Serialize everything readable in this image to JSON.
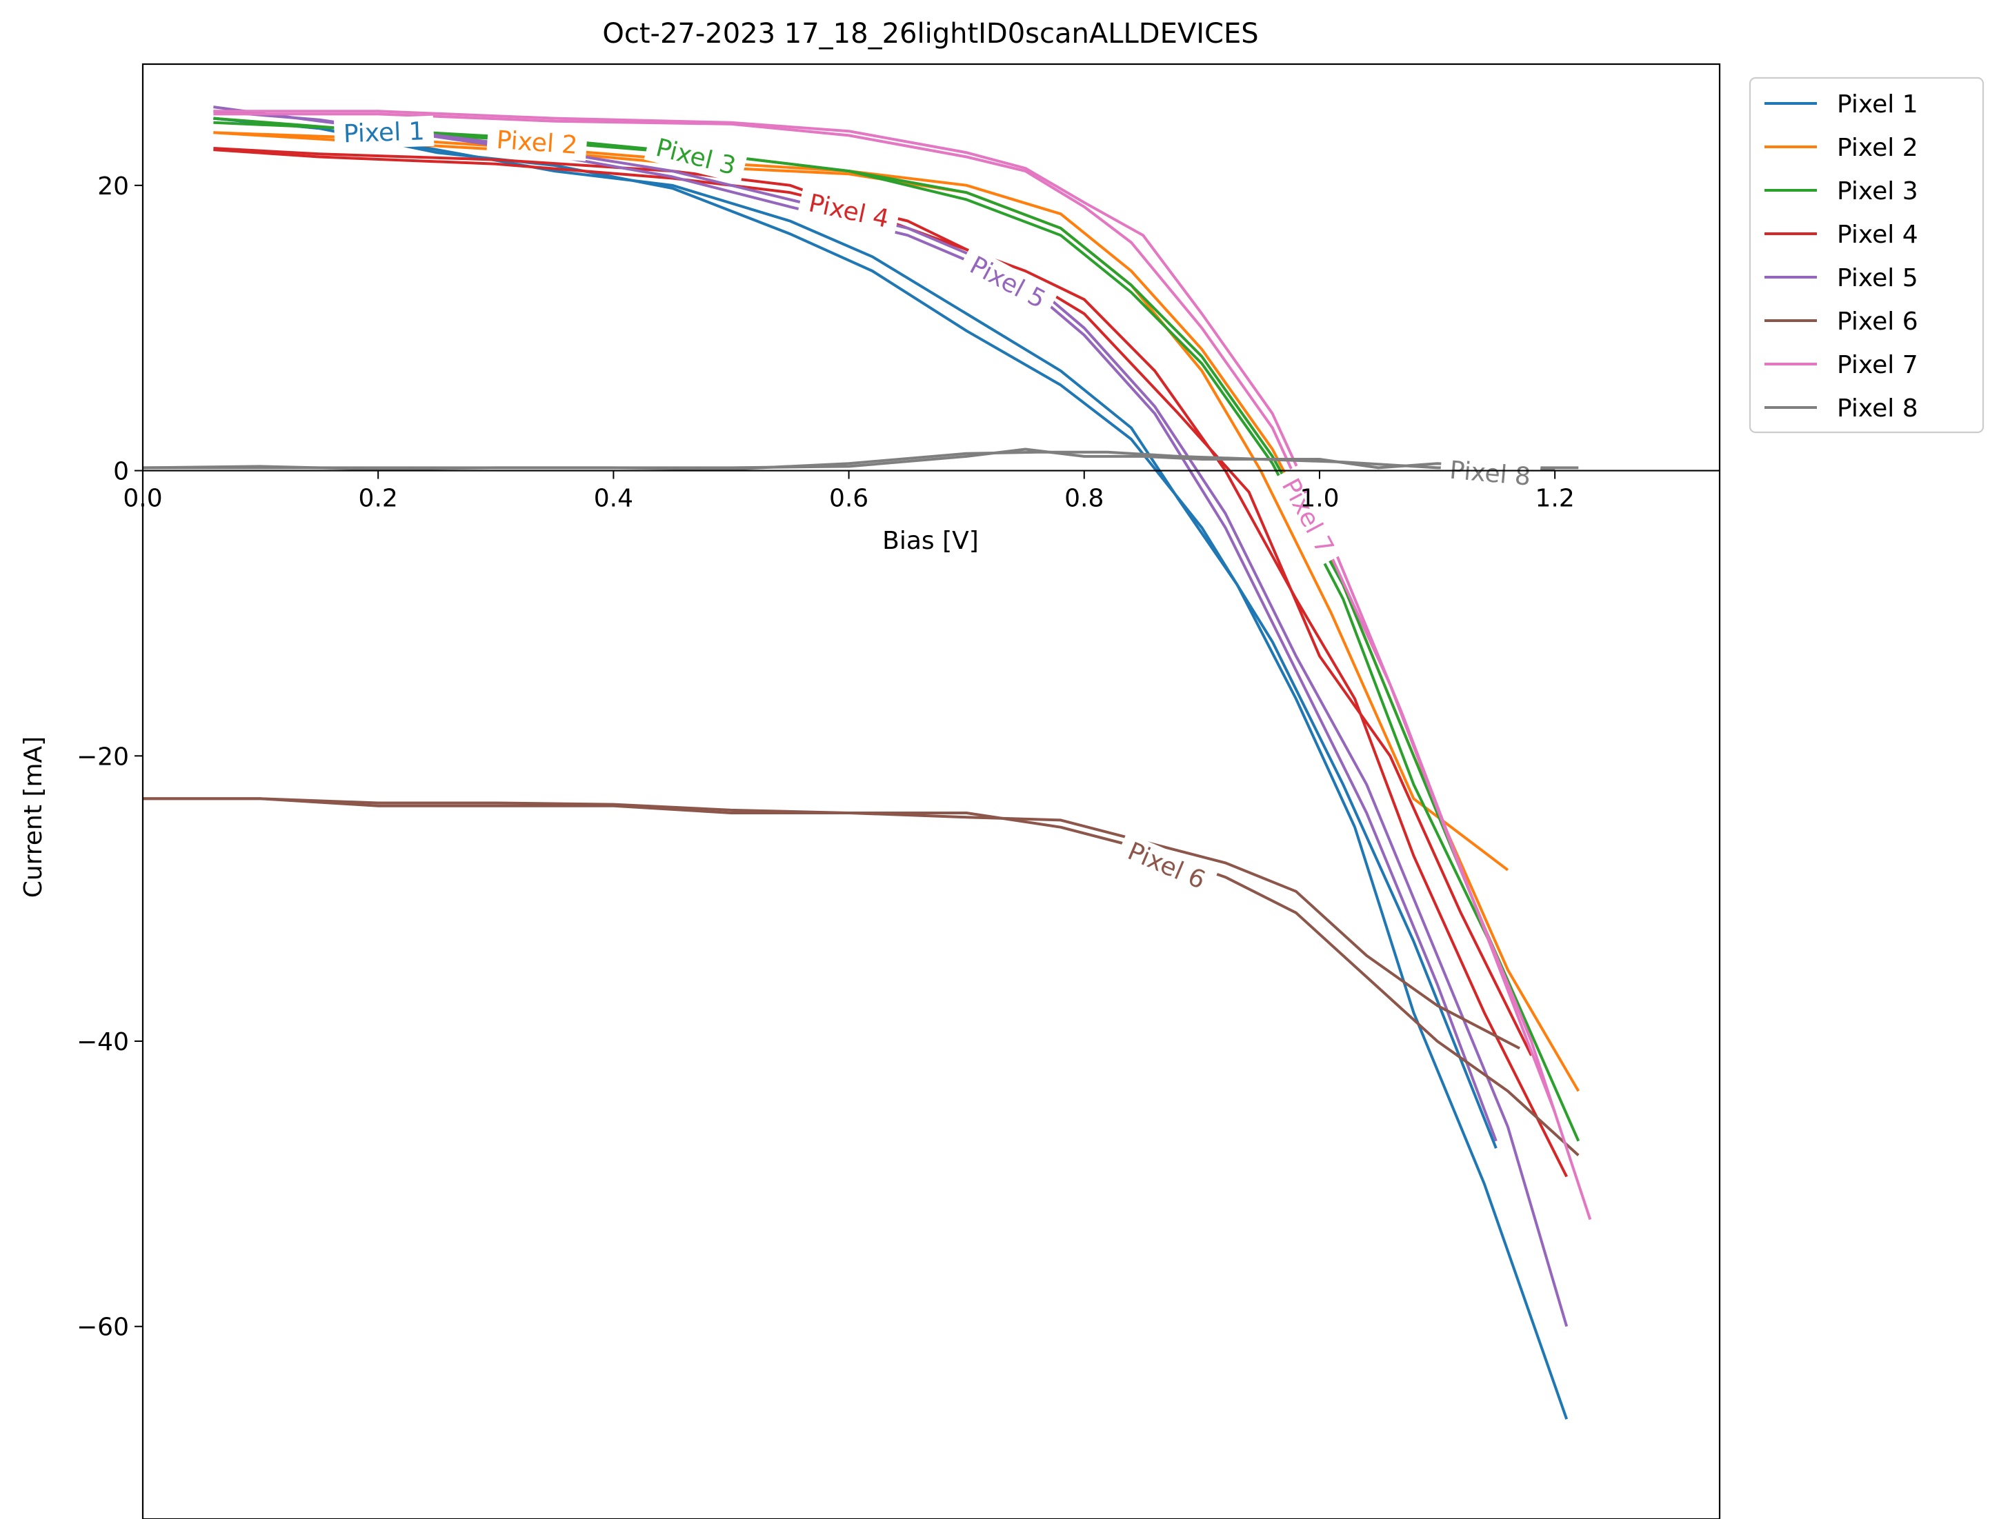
{
  "chart_data": {
    "type": "line",
    "title": "Oct-27-2023 17_18_26lightID0scanALLDEVICES",
    "xlabel": "Bias [V]",
    "ylabel": "Current [mA]",
    "xlim": [
      0.0,
      1.34
    ],
    "ylim": [
      -73.5,
      28.5
    ],
    "xticks": [
      0.0,
      0.2,
      0.4,
      0.6,
      0.8,
      1.0,
      1.2
    ],
    "xtick_labels": [
      "0.0",
      "0.2",
      "0.4",
      "0.6",
      "0.8",
      "1.0",
      "1.2"
    ],
    "yticks": [
      20,
      0,
      -20,
      -40,
      -60
    ],
    "ytick_labels": [
      "20",
      "0",
      "−20",
      "−40",
      "−60"
    ],
    "x_axis_at_y": 0,
    "grid": false,
    "legend_position": "outside-top-right",
    "series": [
      {
        "name": "Pixel 1",
        "color": "#1f77b4",
        "sweeps": [
          [
            [
              0.06,
              24.7
            ],
            [
              0.15,
              24.0
            ],
            [
              0.25,
              22.5
            ],
            [
              0.35,
              21.0
            ],
            [
              0.45,
              20.0
            ],
            [
              0.55,
              17.5
            ],
            [
              0.62,
              15.0
            ],
            [
              0.7,
              11.0
            ],
            [
              0.78,
              7.0
            ],
            [
              0.84,
              3.0
            ],
            [
              0.88,
              -2.0
            ],
            [
              0.93,
              -8.0
            ],
            [
              0.98,
              -16.0
            ],
            [
              1.03,
              -25.0
            ],
            [
              1.08,
              -38.0
            ],
            [
              1.14,
              -50.0
            ],
            [
              1.21,
              -66.5
            ]
          ],
          [
            [
              0.06,
              24.7
            ],
            [
              0.15,
              24.0
            ],
            [
              0.25,
              22.3
            ],
            [
              0.35,
              21.4
            ],
            [
              0.45,
              19.8
            ],
            [
              0.55,
              16.6
            ],
            [
              0.62,
              14.0
            ],
            [
              0.7,
              9.8
            ],
            [
              0.78,
              6.0
            ],
            [
              0.84,
              2.2
            ],
            [
              0.9,
              -4.0
            ],
            [
              0.96,
              -12.0
            ],
            [
              1.02,
              -22.0
            ],
            [
              1.08,
              -33.0
            ],
            [
              1.15,
              -47.5
            ]
          ]
        ]
      },
      {
        "name": "Pixel 2",
        "color": "#ff7f0e",
        "sweeps": [
          [
            [
              0.06,
              23.7
            ],
            [
              0.2,
              23.3
            ],
            [
              0.35,
              22.5
            ],
            [
              0.5,
              21.5
            ],
            [
              0.6,
              21.0
            ],
            [
              0.7,
              20.0
            ],
            [
              0.78,
              18.0
            ],
            [
              0.84,
              14.0
            ],
            [
              0.9,
              8.5
            ],
            [
              0.96,
              1.5
            ],
            [
              1.02,
              -8.0
            ],
            [
              1.08,
              -20.0
            ],
            [
              1.16,
              -35.0
            ],
            [
              1.22,
              -43.5
            ]
          ],
          [
            [
              0.06,
              23.7
            ],
            [
              0.2,
              23.0
            ],
            [
              0.35,
              22.3
            ],
            [
              0.5,
              21.2
            ],
            [
              0.6,
              20.8
            ],
            [
              0.7,
              19.5
            ],
            [
              0.78,
              17.0
            ],
            [
              0.84,
              13.0
            ],
            [
              0.9,
              7.0
            ],
            [
              0.95,
              0.0
            ],
            [
              1.01,
              -10.0
            ],
            [
              1.08,
              -23.0
            ],
            [
              1.16,
              -28.0
            ]
          ]
        ]
      },
      {
        "name": "Pixel 3",
        "color": "#2ca02c",
        "sweeps": [
          [
            [
              0.06,
              24.7
            ],
            [
              0.2,
              23.8
            ],
            [
              0.35,
              23.0
            ],
            [
              0.5,
              22.0
            ],
            [
              0.6,
              21.0
            ],
            [
              0.7,
              19.5
            ],
            [
              0.78,
              17.0
            ],
            [
              0.84,
              13.0
            ],
            [
              0.9,
              8.0
            ],
            [
              0.96,
              1.0
            ],
            [
              1.02,
              -8.0
            ],
            [
              1.08,
              -20.0
            ],
            [
              1.14,
              -32.0
            ],
            [
              1.22,
              -47.0
            ]
          ],
          [
            [
              0.06,
              24.4
            ],
            [
              0.2,
              23.9
            ],
            [
              0.35,
              23.2
            ],
            [
              0.5,
              22.0
            ],
            [
              0.6,
              21.0
            ],
            [
              0.7,
              19.0
            ],
            [
              0.78,
              16.5
            ],
            [
              0.84,
              12.5
            ],
            [
              0.9,
              7.5
            ],
            [
              0.96,
              0.5
            ],
            [
              1.02,
              -9.0
            ],
            [
              1.08,
              -22.0
            ],
            [
              1.15,
              -34.0
            ]
          ]
        ]
      },
      {
        "name": "Pixel 4",
        "color": "#d62728",
        "sweeps": [
          [
            [
              0.06,
              22.6
            ],
            [
              0.15,
              22.2
            ],
            [
              0.3,
              21.8
            ],
            [
              0.45,
              21.0
            ],
            [
              0.55,
              20.0
            ],
            [
              0.65,
              17.0
            ],
            [
              0.75,
              14.0
            ],
            [
              0.8,
              12.0
            ],
            [
              0.86,
              7.0
            ],
            [
              0.92,
              0.0
            ],
            [
              0.98,
              -9.0
            ],
            [
              1.03,
              -16.0
            ],
            [
              1.08,
              -27.0
            ],
            [
              1.14,
              -38.0
            ],
            [
              1.21,
              -49.5
            ]
          ],
          [
            [
              0.06,
              22.5
            ],
            [
              0.15,
              22.0
            ],
            [
              0.3,
              21.5
            ],
            [
              0.45,
              20.5
            ],
            [
              0.55,
              19.5
            ],
            [
              0.65,
              17.5
            ],
            [
              0.75,
              13.5
            ],
            [
              0.8,
              11.0
            ],
            [
              0.88,
              4.0
            ],
            [
              0.94,
              -1.5
            ],
            [
              1.0,
              -13.0
            ],
            [
              1.06,
              -20.0
            ],
            [
              1.12,
              -31.0
            ],
            [
              1.18,
              -41.0
            ]
          ]
        ]
      },
      {
        "name": "Pixel 5",
        "color": "#9467bd",
        "sweeps": [
          [
            [
              0.06,
              25.5
            ],
            [
              0.15,
              24.5
            ],
            [
              0.3,
              23.0
            ],
            [
              0.45,
              21.0
            ],
            [
              0.55,
              19.0
            ],
            [
              0.65,
              17.0
            ],
            [
              0.75,
              13.5
            ],
            [
              0.8,
              10.0
            ],
            [
              0.86,
              4.5
            ],
            [
              0.92,
              -3.0
            ],
            [
              0.98,
              -13.0
            ],
            [
              1.04,
              -22.0
            ],
            [
              1.1,
              -34.0
            ],
            [
              1.16,
              -46.0
            ],
            [
              1.21,
              -60.0
            ]
          ],
          [
            [
              0.06,
              25.2
            ],
            [
              0.15,
              24.6
            ],
            [
              0.3,
              22.8
            ],
            [
              0.45,
              20.6
            ],
            [
              0.55,
              18.5
            ],
            [
              0.65,
              16.5
            ],
            [
              0.75,
              13.0
            ],
            [
              0.8,
              9.5
            ],
            [
              0.86,
              4.0
            ],
            [
              0.92,
              -4.0
            ],
            [
              0.98,
              -14.0
            ],
            [
              1.04,
              -24.0
            ],
            [
              1.1,
              -36.0
            ],
            [
              1.15,
              -47.0
            ]
          ]
        ]
      },
      {
        "name": "Pixel 6",
        "color": "#8c564b",
        "sweeps": [
          [
            [
              0.0,
              -23.0
            ],
            [
              0.1,
              -23.0
            ],
            [
              0.2,
              -23.5
            ],
            [
              0.3,
              -23.5
            ],
            [
              0.4,
              -23.5
            ],
            [
              0.5,
              -24.0
            ],
            [
              0.6,
              -24.0
            ],
            [
              0.7,
              -24.0
            ],
            [
              0.78,
              -25.0
            ],
            [
              0.85,
              -26.5
            ],
            [
              0.92,
              -28.5
            ],
            [
              0.98,
              -31.0
            ],
            [
              1.04,
              -35.5
            ],
            [
              1.1,
              -40.0
            ],
            [
              1.16,
              -43.5
            ],
            [
              1.22,
              -48.0
            ]
          ],
          [
            [
              0.0,
              -23.0
            ],
            [
              0.1,
              -23.0
            ],
            [
              0.2,
              -23.3
            ],
            [
              0.3,
              -23.3
            ],
            [
              0.4,
              -23.4
            ],
            [
              0.5,
              -23.8
            ],
            [
              0.6,
              -24.0
            ],
            [
              0.7,
              -24.3
            ],
            [
              0.78,
              -24.5
            ],
            [
              0.85,
              -26.0
            ],
            [
              0.92,
              -27.5
            ],
            [
              0.98,
              -29.5
            ],
            [
              1.04,
              -34.0
            ],
            [
              1.1,
              -37.5
            ],
            [
              1.17,
              -40.5
            ]
          ]
        ]
      },
      {
        "name": "Pixel 7",
        "color": "#e377c2",
        "sweeps": [
          [
            [
              0.06,
              25.0
            ],
            [
              0.2,
              25.0
            ],
            [
              0.35,
              24.5
            ],
            [
              0.5,
              24.3
            ],
            [
              0.6,
              23.5
            ],
            [
              0.7,
              22.0
            ],
            [
              0.75,
              21.0
            ],
            [
              0.8,
              18.5
            ],
            [
              0.84,
              16.0
            ],
            [
              0.9,
              10.0
            ],
            [
              0.96,
              3.0
            ],
            [
              1.01,
              -6.0
            ],
            [
              1.06,
              -15.0
            ],
            [
              1.12,
              -28.0
            ],
            [
              1.18,
              -40.0
            ],
            [
              1.23,
              -52.5
            ]
          ],
          [
            [
              0.06,
              25.2
            ],
            [
              0.2,
              25.2
            ],
            [
              0.35,
              24.7
            ],
            [
              0.5,
              24.4
            ],
            [
              0.6,
              23.8
            ],
            [
              0.7,
              22.3
            ],
            [
              0.75,
              21.2
            ],
            [
              0.8,
              18.8
            ],
            [
              0.85,
              16.5
            ],
            [
              0.9,
              11.0
            ],
            [
              0.96,
              4.0
            ],
            [
              1.01,
              -5.0
            ],
            [
              1.07,
              -17.0
            ],
            [
              1.13,
              -30.0
            ],
            [
              1.2,
              -45.0
            ]
          ]
        ]
      },
      {
        "name": "Pixel 8",
        "color": "#7f7f7f",
        "sweeps": [
          [
            [
              0.0,
              0.2
            ],
            [
              0.1,
              0.2
            ],
            [
              0.2,
              0.2
            ],
            [
              0.3,
              0.2
            ],
            [
              0.4,
              0.2
            ],
            [
              0.5,
              0.2
            ],
            [
              0.6,
              0.3
            ],
            [
              0.7,
              1.0
            ],
            [
              0.75,
              1.5
            ],
            [
              0.8,
              1.0
            ],
            [
              0.85,
              1.0
            ],
            [
              0.9,
              0.8
            ],
            [
              1.0,
              0.8
            ],
            [
              1.05,
              0.2
            ],
            [
              1.1,
              0.5
            ],
            [
              1.2,
              0.1
            ]
          ],
          [
            [
              0.0,
              0.2
            ],
            [
              0.1,
              0.3
            ],
            [
              0.2,
              0.1
            ],
            [
              0.3,
              0.2
            ],
            [
              0.4,
              0.2
            ],
            [
              0.5,
              0.1
            ],
            [
              0.6,
              0.5
            ],
            [
              0.7,
              1.2
            ],
            [
              0.76,
              1.3
            ],
            [
              0.82,
              1.3
            ],
            [
              0.88,
              1.0
            ],
            [
              0.95,
              0.8
            ],
            [
              1.02,
              0.6
            ],
            [
              1.1,
              0.2
            ],
            [
              1.22,
              0.2
            ]
          ]
        ]
      }
    ],
    "inline_labels": [
      {
        "text": "Pixel 1",
        "color": "#1f77b4",
        "x": 0.205,
        "y": 23.7,
        "angle": -2
      },
      {
        "text": "Pixel 2",
        "color": "#ff7f0e",
        "x": 0.335,
        "y": 23.0,
        "angle": 4
      },
      {
        "text": "Pixel 3",
        "color": "#2ca02c",
        "x": 0.47,
        "y": 22.0,
        "angle": 14
      },
      {
        "text": "Pixel 4",
        "color": "#d62728",
        "x": 0.6,
        "y": 18.2,
        "angle": 12
      },
      {
        "text": "Pixel 5",
        "color": "#9467bd",
        "x": 0.735,
        "y": 13.2,
        "angle": 28
      },
      {
        "text": "Pixel 6",
        "color": "#8c564b",
        "x": 0.87,
        "y": -27.7,
        "angle": 23
      },
      {
        "text": "Pixel 7",
        "color": "#e377c2",
        "x": 0.99,
        "y": -3.2,
        "angle": 62
      },
      {
        "text": "Pixel 8",
        "color": "#7f7f7f",
        "x": 1.145,
        "y": -0.2,
        "angle": 5
      }
    ]
  }
}
